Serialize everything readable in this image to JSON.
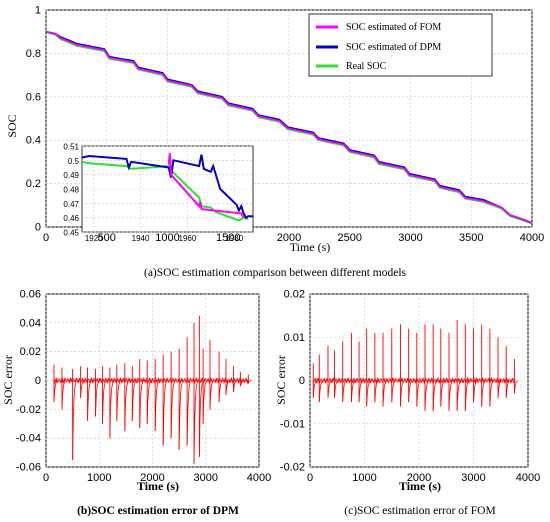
{
  "chart_data": [
    {
      "id": "a",
      "type": "line",
      "caption": "(a)SOC estimation comparison between different models",
      "xlabel": "Time (s)",
      "ylabel": "SOC",
      "xlim": [
        0,
        4000
      ],
      "ylim": [
        0,
        1
      ],
      "x_ticks": [
        "0",
        "500",
        "1000",
        "1500",
        "2000",
        "2500",
        "3000",
        "3500",
        "4000"
      ],
      "y_ticks": [
        "0",
        "0.2",
        "0.4",
        "0.6",
        "0.8",
        "1"
      ],
      "grid": true,
      "legend_position": "top-right",
      "series": [
        {
          "name": "SOC estimated of FOM",
          "color": "#ff00ff",
          "points": [
            [
              0,
              0.9
            ],
            [
              80,
              0.89
            ],
            [
              120,
              0.87
            ],
            [
              190,
              0.855
            ],
            [
              250,
              0.84
            ],
            [
              480,
              0.815
            ],
            [
              520,
              0.78
            ],
            [
              720,
              0.76
            ],
            [
              760,
              0.73
            ],
            [
              960,
              0.705
            ],
            [
              1000,
              0.675
            ],
            [
              1200,
              0.65
            ],
            [
              1250,
              0.62
            ],
            [
              1450,
              0.595
            ],
            [
              1500,
              0.565
            ],
            [
              1700,
              0.54
            ],
            [
              1750,
              0.51
            ],
            [
              1920,
              0.49
            ],
            [
              1990,
              0.455
            ],
            [
              2200,
              0.43
            ],
            [
              2240,
              0.405
            ],
            [
              2450,
              0.38
            ],
            [
              2500,
              0.35
            ],
            [
              2700,
              0.325
            ],
            [
              2740,
              0.295
            ],
            [
              2950,
              0.27
            ],
            [
              2990,
              0.24
            ],
            [
              3200,
              0.215
            ],
            [
              3240,
              0.185
            ],
            [
              3400,
              0.165
            ],
            [
              3450,
              0.135
            ],
            [
              3600,
              0.12
            ],
            [
              3750,
              0.09
            ],
            [
              3820,
              0.055
            ],
            [
              3900,
              0.04
            ],
            [
              4000,
              0.02
            ]
          ]
        },
        {
          "name": "SOC estimated of DPM",
          "color": "#0000c8",
          "points": [
            [
              0,
              0.9
            ],
            [
              80,
              0.89
            ],
            [
              120,
              0.875
            ],
            [
              190,
              0.86
            ],
            [
              250,
              0.845
            ],
            [
              480,
              0.82
            ],
            [
              520,
              0.785
            ],
            [
              720,
              0.765
            ],
            [
              760,
              0.735
            ],
            [
              960,
              0.71
            ],
            [
              1000,
              0.68
            ],
            [
              1200,
              0.655
            ],
            [
              1250,
              0.625
            ],
            [
              1450,
              0.6
            ],
            [
              1500,
              0.57
            ],
            [
              1700,
              0.545
            ],
            [
              1750,
              0.515
            ],
            [
              1920,
              0.495
            ],
            [
              1990,
              0.46
            ],
            [
              2200,
              0.435
            ],
            [
              2240,
              0.41
            ],
            [
              2450,
              0.385
            ],
            [
              2500,
              0.355
            ],
            [
              2700,
              0.33
            ],
            [
              2740,
              0.3
            ],
            [
              2950,
              0.275
            ],
            [
              2990,
              0.245
            ],
            [
              3200,
              0.22
            ],
            [
              3240,
              0.19
            ],
            [
              3400,
              0.17
            ],
            [
              3450,
              0.14
            ],
            [
              3600,
              0.125
            ],
            [
              3750,
              0.09
            ],
            [
              3820,
              0.055
            ],
            [
              3900,
              0.04
            ],
            [
              4000,
              0.02
            ]
          ]
        },
        {
          "name": "Real SOC",
          "color": "#33dd33",
          "points": [
            [
              0,
              0.9
            ],
            [
              80,
              0.885
            ],
            [
              120,
              0.865
            ],
            [
              190,
              0.85
            ],
            [
              250,
              0.835
            ],
            [
              480,
              0.81
            ],
            [
              520,
              0.775
            ],
            [
              720,
              0.755
            ],
            [
              760,
              0.725
            ],
            [
              960,
              0.7
            ],
            [
              1000,
              0.67
            ],
            [
              1200,
              0.645
            ],
            [
              1250,
              0.615
            ],
            [
              1450,
              0.59
            ],
            [
              1500,
              0.56
            ],
            [
              1700,
              0.535
            ],
            [
              1750,
              0.505
            ],
            [
              1920,
              0.485
            ],
            [
              1990,
              0.45
            ],
            [
              2200,
              0.425
            ],
            [
              2240,
              0.4
            ],
            [
              2450,
              0.375
            ],
            [
              2500,
              0.345
            ],
            [
              2700,
              0.32
            ],
            [
              2740,
              0.29
            ],
            [
              2950,
              0.265
            ],
            [
              2990,
              0.235
            ],
            [
              3200,
              0.21
            ],
            [
              3240,
              0.18
            ],
            [
              3400,
              0.16
            ],
            [
              3450,
              0.13
            ],
            [
              3600,
              0.115
            ],
            [
              3750,
              0.085
            ],
            [
              3820,
              0.05
            ],
            [
              3900,
              0.035
            ],
            [
              4000,
              0.015
            ]
          ]
        }
      ],
      "inset": {
        "xlim": [
          1915,
          1988
        ],
        "ylim": [
          0.45,
          0.51
        ],
        "x_ticks": [
          "1920",
          "1940",
          "1960",
          "1980"
        ],
        "y_ticks": [
          "0.45",
          "0.46",
          "0.47",
          "0.48",
          "0.49",
          "0.5",
          "0.51"
        ],
        "series": [
          {
            "name": "Real SOC",
            "color": "#33dd33",
            "points": [
              [
                1915,
                0.499
              ],
              [
                1918,
                0.498
              ],
              [
                1934,
                0.496
              ],
              [
                1936,
                0.494
              ],
              [
                1952,
                0.496
              ],
              [
                1953,
                0.493
              ],
              [
                1965,
                0.474
              ],
              [
                1966,
                0.468
              ],
              [
                1970,
                0.467
              ],
              [
                1972,
                0.464
              ],
              [
                1982,
                0.458
              ],
              [
                1984,
                0.46
              ],
              [
                1986,
                0.459
              ]
            ]
          },
          {
            "name": "SOC estimated of DPM",
            "color": "#0000c8",
            "points": [
              [
                1915,
                0.502
              ],
              [
                1918,
                0.503
              ],
              [
                1934,
                0.501
              ],
              [
                1935,
                0.495
              ],
              [
                1936,
                0.499
              ],
              [
                1952,
                0.495
              ],
              [
                1953,
                0.488
              ],
              [
                1954,
                0.5
              ],
              [
                1965,
                0.496
              ],
              [
                1966,
                0.504
              ],
              [
                1967,
                0.494
              ],
              [
                1970,
                0.492
              ],
              [
                1971,
                0.496
              ],
              [
                1974,
                0.48
              ],
              [
                1981,
                0.469
              ],
              [
                1982,
                0.465
              ],
              [
                1983,
                0.468
              ],
              [
                1984,
                0.463
              ],
              [
                1985,
                0.46
              ],
              [
                1986,
                0.461
              ],
              [
                1988,
                0.461
              ]
            ]
          },
          {
            "name": "SOC estimated of FOM",
            "color": "#ff00ff",
            "points": [
              [
                1952,
                0.497
              ],
              [
                1952.5,
                0.505
              ],
              [
                1953,
                0.49
              ],
              [
                1965,
                0.468
              ],
              [
                1965.5,
                0.471
              ],
              [
                1966,
                0.466
              ],
              [
                1983,
                0.463
              ],
              [
                1984,
                0.46
              ]
            ]
          }
        ]
      }
    },
    {
      "id": "b",
      "type": "line",
      "caption": "(b)SOC estimation error of DPM",
      "xlabel": "Time (s)",
      "ylabel": "SOC error",
      "xlim": [
        0,
        4000
      ],
      "ylim": [
        -0.06,
        0.06
      ],
      "x_ticks": [
        "0",
        "1000",
        "2000",
        "3000",
        "4000"
      ],
      "y_ticks": [
        "0.06",
        "0.04",
        "0.02",
        "0",
        "-0.02",
        "-0.04",
        "-0.06"
      ],
      "grid": true,
      "series": [
        {
          "name": "",
          "color": "#ff0000",
          "spikes": [
            [
              150,
              0.011,
              -0.015
            ],
            [
              300,
              0.009,
              -0.02
            ],
            [
              500,
              0.008,
              -0.055
            ],
            [
              650,
              0.01,
              -0.012
            ],
            [
              780,
              0.009,
              -0.028
            ],
            [
              930,
              0.008,
              -0.025
            ],
            [
              1060,
              0.01,
              -0.03
            ],
            [
              1200,
              0.009,
              -0.04
            ],
            [
              1330,
              0.011,
              -0.028
            ],
            [
              1480,
              0.012,
              -0.035
            ],
            [
              1620,
              0.01,
              -0.028
            ],
            [
              1760,
              0.015,
              -0.033
            ],
            [
              1900,
              0.014,
              -0.03
            ],
            [
              2050,
              0.015,
              -0.035
            ],
            [
              2200,
              0.018,
              -0.045
            ],
            [
              2350,
              0.02,
              -0.04
            ],
            [
              2500,
              0.022,
              -0.048
            ],
            [
              2650,
              0.03,
              -0.045
            ],
            [
              2780,
              0.04,
              -0.058
            ],
            [
              2880,
              0.045,
              -0.053
            ],
            [
              2950,
              0.022,
              -0.03
            ],
            [
              3080,
              0.028,
              -0.02
            ],
            [
              3250,
              0.02,
              -0.015
            ],
            [
              3380,
              0.015,
              -0.01
            ],
            [
              3520,
              0.01,
              -0.008
            ],
            [
              3650,
              0.006,
              -0.004
            ],
            [
              3800,
              0.004,
              -0.002
            ]
          ]
        }
      ]
    },
    {
      "id": "c",
      "type": "line",
      "caption": "(c)SOC estimation error of FOM",
      "xlabel": "Time (s)",
      "ylabel": "SOC error",
      "xlim": [
        0,
        4000
      ],
      "ylim": [
        -0.02,
        0.02
      ],
      "x_ticks": [
        "0",
        "1000",
        "2000",
        "3000",
        "4000"
      ],
      "y_ticks": [
        "0.02",
        "0.01",
        "0",
        "-0.01",
        "-0.02"
      ],
      "grid": true,
      "series": [
        {
          "name": "",
          "color": "#ff0000",
          "spikes": [
            [
              60,
              0.004,
              -0.004
            ],
            [
              170,
              0.006,
              -0.005
            ],
            [
              330,
              0.008,
              -0.004
            ],
            [
              450,
              0.007,
              -0.004
            ],
            [
              600,
              0.009,
              -0.005
            ],
            [
              760,
              0.011,
              -0.005
            ],
            [
              900,
              0.009,
              -0.005
            ],
            [
              1040,
              0.012,
              -0.006
            ],
            [
              1190,
              0.011,
              -0.005
            ],
            [
              1340,
              0.011,
              -0.006
            ],
            [
              1500,
              0.012,
              -0.005
            ],
            [
              1660,
              0.013,
              -0.006
            ],
            [
              1810,
              0.012,
              -0.005
            ],
            [
              1960,
              0.011,
              -0.006
            ],
            [
              2110,
              0.013,
              -0.007
            ],
            [
              2260,
              0.013,
              -0.007
            ],
            [
              2400,
              0.012,
              -0.006
            ],
            [
              2550,
              0.011,
              -0.007
            ],
            [
              2700,
              0.014,
              -0.007
            ],
            [
              2850,
              0.013,
              -0.007
            ],
            [
              3000,
              0.012,
              -0.005
            ],
            [
              3150,
              0.013,
              -0.006
            ],
            [
              3300,
              0.012,
              -0.006
            ],
            [
              3450,
              0.01,
              -0.004
            ],
            [
              3600,
              0.008,
              -0.004
            ],
            [
              3750,
              0.005,
              -0.003
            ]
          ]
        }
      ]
    }
  ]
}
